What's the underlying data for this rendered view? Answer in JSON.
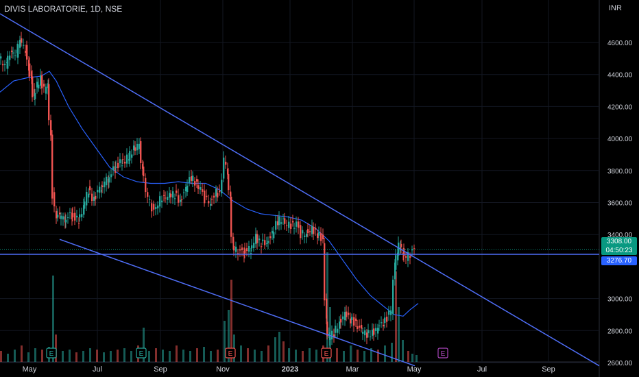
{
  "header": {
    "symbol_label": "DIVIS LABORATORIE, 1D, NSE",
    "currency": "INR"
  },
  "price_tags": {
    "last_price": "3308.00",
    "countdown": "04:50:23",
    "level_price": "3276.70",
    "last_color": "#089981",
    "level_color": "#2962ff"
  },
  "chart_data": {
    "type": "candlestick",
    "y_axis": {
      "ticks": [
        "4600.00",
        "4400.00",
        "4200.00",
        "4000.00",
        "3800.00",
        "3600.00",
        "3400.00",
        "3000.00",
        "2800.00",
        "2600.00"
      ],
      "range": [
        2570,
        4800
      ]
    },
    "x_axis": {
      "ticks": [
        "May",
        "Jul",
        "Sep",
        "Nov",
        "2023",
        "Mar",
        "May",
        "Jul",
        "Sep"
      ]
    },
    "colors": {
      "up": "#26a69a",
      "down": "#ef5350",
      "ma": "#2962ff",
      "lines": "#4f6ef7"
    },
    "price_path": [
      [
        0,
        4500
      ],
      [
        10,
        4460
      ],
      [
        18,
        4550
      ],
      [
        25,
        4530
      ],
      [
        30,
        4610
      ],
      [
        38,
        4560
      ],
      [
        42,
        4450
      ],
      [
        46,
        4380
      ],
      [
        50,
        4250
      ],
      [
        55,
        4330
      ],
      [
        60,
        4370
      ],
      [
        66,
        4300
      ],
      [
        70,
        4350
      ],
      [
        75,
        4000
      ],
      [
        78,
        3650
      ],
      [
        83,
        3500
      ],
      [
        88,
        3520
      ],
      [
        95,
        3500
      ],
      [
        105,
        3520
      ],
      [
        115,
        3490
      ],
      [
        122,
        3560
      ],
      [
        130,
        3680
      ],
      [
        138,
        3620
      ],
      [
        148,
        3700
      ],
      [
        158,
        3750
      ],
      [
        168,
        3810
      ],
      [
        178,
        3850
      ],
      [
        188,
        3880
      ],
      [
        196,
        3940
      ],
      [
        204,
        3960
      ],
      [
        208,
        3800
      ],
      [
        214,
        3680
      ],
      [
        220,
        3600
      ],
      [
        226,
        3540
      ],
      [
        232,
        3600
      ],
      [
        240,
        3640
      ],
      [
        248,
        3640
      ],
      [
        256,
        3650
      ],
      [
        264,
        3610
      ],
      [
        272,
        3680
      ],
      [
        280,
        3760
      ],
      [
        288,
        3720
      ],
      [
        294,
        3690
      ],
      [
        300,
        3620
      ],
      [
        308,
        3600
      ],
      [
        316,
        3660
      ],
      [
        322,
        3640
      ],
      [
        328,
        3880
      ],
      [
        332,
        3800
      ],
      [
        336,
        3650
      ],
      [
        340,
        3330
      ],
      [
        346,
        3300
      ],
      [
        356,
        3290
      ],
      [
        366,
        3310
      ],
      [
        374,
        3380
      ],
      [
        382,
        3340
      ],
      [
        390,
        3350
      ],
      [
        398,
        3400
      ],
      [
        406,
        3480
      ],
      [
        414,
        3500
      ],
      [
        420,
        3460
      ],
      [
        428,
        3460
      ],
      [
        434,
        3470
      ],
      [
        440,
        3400
      ],
      [
        448,
        3410
      ],
      [
        456,
        3430
      ],
      [
        464,
        3400
      ],
      [
        472,
        3370
      ],
      [
        476,
        2880
      ],
      [
        480,
        2760
      ],
      [
        488,
        2780
      ],
      [
        496,
        2850
      ],
      [
        504,
        2900
      ],
      [
        512,
        2870
      ],
      [
        520,
        2850
      ],
      [
        528,
        2800
      ],
      [
        536,
        2780
      ],
      [
        544,
        2790
      ],
      [
        552,
        2810
      ],
      [
        560,
        2850
      ],
      [
        566,
        2880
      ],
      [
        572,
        2930
      ],
      [
        576,
        3200
      ],
      [
        580,
        3280
      ],
      [
        584,
        3340
      ],
      [
        588,
        3300
      ],
      [
        594,
        3260
      ],
      [
        600,
        3280
      ],
      [
        606,
        3308
      ]
    ],
    "moving_average": [
      [
        0,
        4290
      ],
      [
        20,
        4360
      ],
      [
        40,
        4380
      ],
      [
        60,
        4390
      ],
      [
        72,
        4420
      ],
      [
        82,
        4360
      ],
      [
        100,
        4200
      ],
      [
        120,
        4060
      ],
      [
        140,
        3940
      ],
      [
        160,
        3820
      ],
      [
        180,
        3760
      ],
      [
        200,
        3730
      ],
      [
        220,
        3720
      ],
      [
        240,
        3720
      ],
      [
        260,
        3730
      ],
      [
        280,
        3720
      ],
      [
        300,
        3720
      ],
      [
        320,
        3680
      ],
      [
        340,
        3610
      ],
      [
        360,
        3560
      ],
      [
        380,
        3530
      ],
      [
        400,
        3520
      ],
      [
        420,
        3510
      ],
      [
        440,
        3490
      ],
      [
        460,
        3440
      ],
      [
        480,
        3360
      ],
      [
        500,
        3240
      ],
      [
        520,
        3120
      ],
      [
        540,
        3020
      ],
      [
        560,
        2950
      ],
      [
        575,
        2900
      ],
      [
        588,
        2890
      ],
      [
        598,
        2930
      ],
      [
        610,
        2970
      ]
    ],
    "volume": [
      [
        0,
        8
      ],
      [
        10,
        6
      ],
      [
        20,
        9
      ],
      [
        30,
        12
      ],
      [
        40,
        7
      ],
      [
        50,
        10
      ],
      [
        60,
        9
      ],
      [
        70,
        11
      ],
      [
        76,
        63
      ],
      [
        80,
        20
      ],
      [
        90,
        8
      ],
      [
        100,
        9
      ],
      [
        110,
        7
      ],
      [
        120,
        8
      ],
      [
        130,
        10
      ],
      [
        140,
        9
      ],
      [
        150,
        7
      ],
      [
        160,
        8
      ],
      [
        170,
        9
      ],
      [
        180,
        10
      ],
      [
        190,
        8
      ],
      [
        200,
        12
      ],
      [
        208,
        25
      ],
      [
        216,
        8
      ],
      [
        226,
        10
      ],
      [
        236,
        9
      ],
      [
        246,
        8
      ],
      [
        256,
        12
      ],
      [
        266,
        9
      ],
      [
        276,
        8
      ],
      [
        286,
        10
      ],
      [
        296,
        11
      ],
      [
        306,
        8
      ],
      [
        316,
        9
      ],
      [
        326,
        30
      ],
      [
        332,
        38
      ],
      [
        336,
        60
      ],
      [
        340,
        20
      ],
      [
        350,
        12
      ],
      [
        360,
        10
      ],
      [
        370,
        9
      ],
      [
        380,
        8
      ],
      [
        390,
        12
      ],
      [
        400,
        18
      ],
      [
        406,
        22
      ],
      [
        412,
        15
      ],
      [
        420,
        10
      ],
      [
        430,
        9
      ],
      [
        440,
        8
      ],
      [
        450,
        10
      ],
      [
        460,
        9
      ],
      [
        470,
        12
      ],
      [
        476,
        80
      ],
      [
        480,
        40
      ],
      [
        490,
        10
      ],
      [
        500,
        8
      ],
      [
        510,
        12
      ],
      [
        520,
        9
      ],
      [
        530,
        8
      ],
      [
        540,
        10
      ],
      [
        550,
        9
      ],
      [
        560,
        12
      ],
      [
        570,
        14
      ],
      [
        576,
        66
      ],
      [
        580,
        40
      ],
      [
        586,
        16
      ],
      [
        594,
        8
      ],
      [
        600,
        6
      ],
      [
        606,
        5
      ]
    ],
    "event_markers": [
      {
        "x": 75,
        "label": "E",
        "style": "teal"
      },
      {
        "x": 206,
        "label": "E",
        "style": "teal"
      },
      {
        "x": 336,
        "label": "E",
        "style": "red"
      },
      {
        "x": 476,
        "label": "E",
        "style": "red"
      },
      {
        "x": 646,
        "label": "E",
        "style": "purple"
      }
    ],
    "horizontal_level": 3276.7,
    "trendlines": [
      {
        "from": [
          0,
          4780
        ],
        "to": [
          874,
          2580
        ]
      },
      {
        "from": [
          87,
          3370
        ],
        "to": [
          605,
          2580
        ]
      }
    ]
  }
}
